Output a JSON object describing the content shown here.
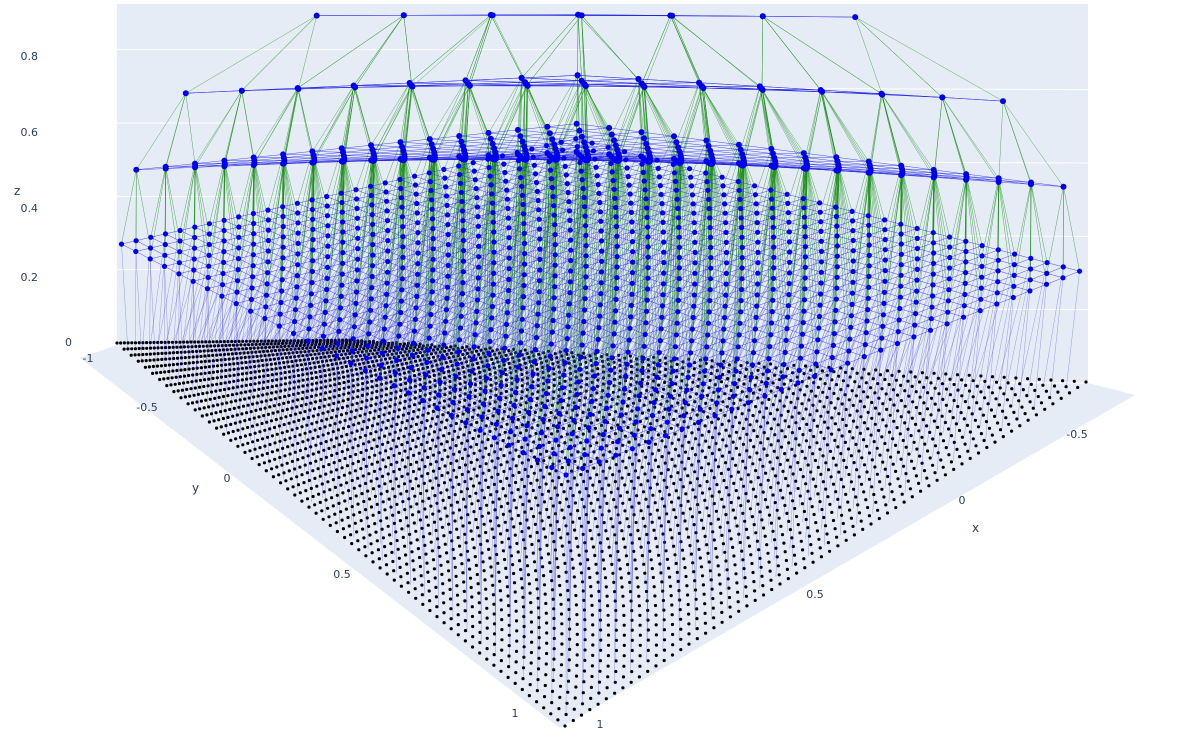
{
  "chart_data": {
    "type": "scatter3d",
    "colors": {
      "background": "#ffffff",
      "pane": "#e5ecf6",
      "grid": "#ffffff",
      "node": "#0000ee",
      "base_point": "#000000",
      "vertical_edge": "#1a8f1a",
      "horizontal_edge": "#2020dd",
      "text": "#2a3f5f"
    },
    "axes": {
      "x": {
        "title": "x",
        "range": [
          -1,
          1
        ],
        "ticks": [
          "-0.5",
          "0",
          "0.5",
          "1"
        ],
        "tick_values": [
          -0.5,
          0,
          0.5,
          1
        ]
      },
      "y": {
        "title": "y",
        "range": [
          -1,
          1
        ],
        "ticks": [
          "-1",
          "-0.5",
          "0",
          "0.5",
          "1"
        ],
        "tick_values": [
          -1,
          -0.5,
          0,
          0.5,
          1
        ]
      },
      "z": {
        "title": "z",
        "range": [
          0,
          0.9
        ],
        "ticks": [
          "0",
          "0.2",
          "0.4",
          "0.6",
          "0.8"
        ],
        "tick_values": [
          0,
          0.2,
          0.4,
          0.6,
          0.8
        ]
      }
    },
    "layers": [
      {
        "z": 0.0,
        "grid": 64,
        "marker": "base_point"
      },
      {
        "z": 0.3,
        "grid": 32,
        "marker": "node"
      },
      {
        "z": 0.5,
        "grid": 16,
        "marker": "node"
      },
      {
        "z": 0.7,
        "grid": 8,
        "marker": "node"
      },
      {
        "z": 0.9,
        "grid": 4,
        "marker": "node"
      }
    ]
  }
}
